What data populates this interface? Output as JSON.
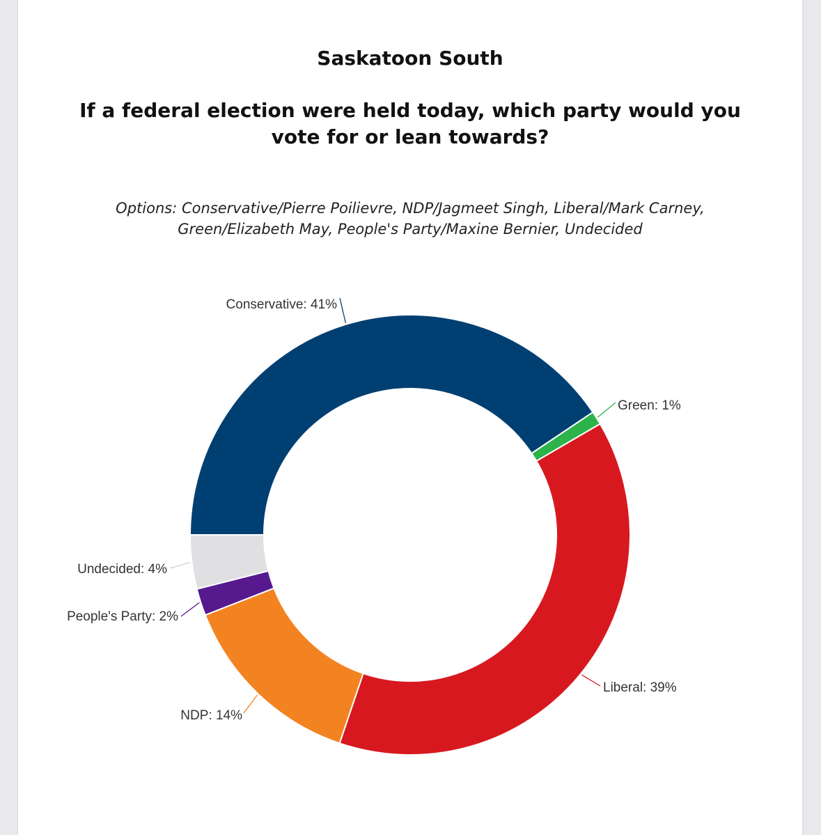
{
  "title": "Saskatoon South",
  "question": "If a federal election were held today, which party would you vote for or lean towards?",
  "options_text": "Options: Conservative/Pierre Poilievre, NDP/Jagmeet Singh, Liberal/Mark Carney, Green/Elizabeth May, People's Party/Maxine Bernier, Undecided",
  "chart_data": {
    "type": "pie",
    "donut": true,
    "title": "Saskatoon South",
    "start_angle_deg": 270,
    "direction": "clockwise",
    "slices": [
      {
        "name": "Conservative",
        "value": 41,
        "label": "Conservative: 41%",
        "color": "#003f72",
        "label_side": "top"
      },
      {
        "name": "Green",
        "value": 1,
        "label": "Green: 1%",
        "color": "#2db34a",
        "label_side": "right"
      },
      {
        "name": "Liberal",
        "value": 39,
        "label": "Liberal: 39%",
        "color": "#d7191f",
        "label_side": "right"
      },
      {
        "name": "NDP",
        "value": 14,
        "label": "NDP: 14%",
        "color": "#f38320",
        "label_side": "left"
      },
      {
        "name": "People's Party",
        "value": 2,
        "label": "People's Party: 2%",
        "color": "#571a8e",
        "label_side": "left"
      },
      {
        "name": "Undecided",
        "value": 4,
        "label": "Undecided: 4%",
        "color": "#e0e0e2",
        "label_side": "left"
      }
    ]
  }
}
